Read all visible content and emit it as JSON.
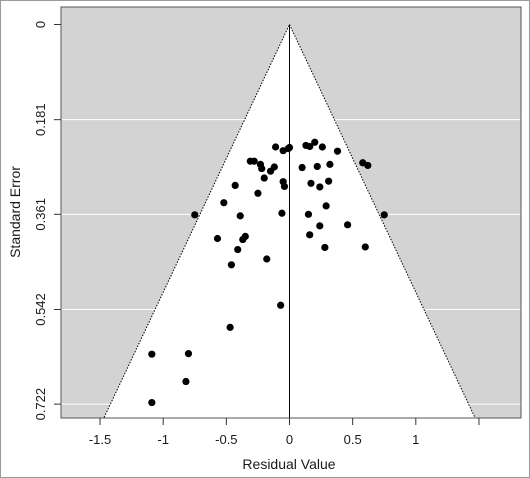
{
  "chart_data": {
    "type": "scatter",
    "title": "",
    "xlabel": "Residual Value",
    "ylabel": "Standard Error",
    "xlim": [
      -1.5,
      1.5
    ],
    "ylim": [
      0,
      0.722
    ],
    "y_reversed": true,
    "x_ticks": [
      -1.5,
      -1,
      -0.5,
      0,
      0.5,
      1
    ],
    "x_tick_labels": [
      "-1.5",
      "-1",
      "-0.5",
      "0",
      "0.5",
      "1"
    ],
    "y_ticks": [
      0,
      0.181,
      0.361,
      0.542,
      0.722
    ],
    "y_tick_labels": [
      "0",
      "0.181",
      "0.361",
      "0.542",
      "0.722"
    ],
    "grid": "horizontal",
    "funnel_apex": [
      0,
      0
    ],
    "funnel_base_x": [
      -1.47,
      1.47
    ],
    "reference_line_x": 0,
    "colors": {
      "outside_funnel": "#d3d3d3",
      "inside_funnel": "#ffffff",
      "points": "#000000",
      "grid": "#ffffff"
    },
    "points": [
      {
        "x": -0.11,
        "y": 0.233
      },
      {
        "x": -0.05,
        "y": 0.24
      },
      {
        "x": -0.01,
        "y": 0.236
      },
      {
        "x": 0.0,
        "y": 0.234
      },
      {
        "x": 0.13,
        "y": 0.23
      },
      {
        "x": 0.16,
        "y": 0.232
      },
      {
        "x": 0.2,
        "y": 0.224
      },
      {
        "x": 0.26,
        "y": 0.233
      },
      {
        "x": 0.38,
        "y": 0.241
      },
      {
        "x": -0.31,
        "y": 0.26
      },
      {
        "x": -0.28,
        "y": 0.26
      },
      {
        "x": -0.23,
        "y": 0.266
      },
      {
        "x": -0.22,
        "y": 0.274
      },
      {
        "x": -0.15,
        "y": 0.279
      },
      {
        "x": -0.12,
        "y": 0.271
      },
      {
        "x": 0.1,
        "y": 0.272
      },
      {
        "x": 0.22,
        "y": 0.27
      },
      {
        "x": 0.32,
        "y": 0.266
      },
      {
        "x": 0.58,
        "y": 0.263
      },
      {
        "x": 0.62,
        "y": 0.268
      },
      {
        "x": -0.43,
        "y": 0.306
      },
      {
        "x": -0.2,
        "y": 0.292
      },
      {
        "x": -0.05,
        "y": 0.299
      },
      {
        "x": -0.04,
        "y": 0.308
      },
      {
        "x": 0.17,
        "y": 0.302
      },
      {
        "x": 0.24,
        "y": 0.309
      },
      {
        "x": 0.31,
        "y": 0.298
      },
      {
        "x": -0.52,
        "y": 0.339
      },
      {
        "x": -0.25,
        "y": 0.321
      },
      {
        "x": -0.75,
        "y": 0.362
      },
      {
        "x": -0.39,
        "y": 0.364
      },
      {
        "x": -0.06,
        "y": 0.359
      },
      {
        "x": 0.15,
        "y": 0.361
      },
      {
        "x": 0.29,
        "y": 0.345
      },
      {
        "x": 0.75,
        "y": 0.362
      },
      {
        "x": 0.24,
        "y": 0.383
      },
      {
        "x": 0.46,
        "y": 0.381
      },
      {
        "x": -0.57,
        "y": 0.407
      },
      {
        "x": -0.37,
        "y": 0.409
      },
      {
        "x": -0.35,
        "y": 0.403
      },
      {
        "x": 0.16,
        "y": 0.4
      },
      {
        "x": -0.41,
        "y": 0.428
      },
      {
        "x": 0.28,
        "y": 0.424
      },
      {
        "x": 0.6,
        "y": 0.423
      },
      {
        "x": -0.46,
        "y": 0.457
      },
      {
        "x": -0.18,
        "y": 0.446
      },
      {
        "x": -0.07,
        "y": 0.534
      },
      {
        "x": -0.47,
        "y": 0.576
      },
      {
        "x": -1.09,
        "y": 0.627
      },
      {
        "x": -0.8,
        "y": 0.626
      },
      {
        "x": -0.82,
        "y": 0.679
      },
      {
        "x": -1.09,
        "y": 0.719
      }
    ]
  }
}
